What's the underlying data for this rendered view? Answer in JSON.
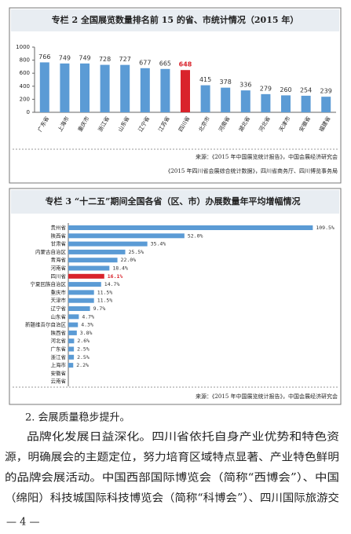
{
  "chart_data": [
    {
      "type": "bar",
      "title": "专栏 2  全国展览数量排名前 15 的省、市统计情况（2015 年）",
      "categories": [
        "广东省",
        "上海市",
        "重庆市",
        "浙江省",
        "山东省",
        "辽宁省",
        "江苏省",
        "四川省",
        "北京市",
        "河南省",
        "湖北省",
        "河北省",
        "天津市",
        "安徽省",
        "福建省"
      ],
      "values": [
        766,
        749,
        749,
        728,
        727,
        677,
        665,
        648,
        415,
        378,
        336,
        279,
        260,
        254,
        239
      ],
      "colors": [
        "#5b9bd5",
        "#5b9bd5",
        "#5b9bd5",
        "#5b9bd5",
        "#5b9bd5",
        "#5b9bd5",
        "#5b9bd5",
        "#d9232b",
        "#5b9bd5",
        "#5b9bd5",
        "#5b9bd5",
        "#5b9bd5",
        "#5b9bd5",
        "#5b9bd5",
        "#5b9bd5"
      ],
      "ylim": [
        0,
        1000
      ],
      "yticks": [
        0,
        200,
        400,
        600,
        800,
        1000
      ],
      "sources": [
        "来源：《2015 年中国展览统计报告》，中国会展经济研究会",
        "《2015 年四川省会展综合统计数据》，四川省商务厅、四川博览事务局"
      ]
    },
    {
      "type": "barh",
      "title": "专栏 3 “十二五”期间全国各省（区、市）办展数量年平均增幅情况",
      "categories": [
        "贵州省",
        "陕西省",
        "甘肃省",
        "内蒙古自治区",
        "青海省",
        "河南省",
        "四川省",
        "宁夏回族自治区",
        "重庆市",
        "天津市",
        "辽宁省",
        "山东省",
        "新疆维吾尔自治区",
        "陕西省",
        "河北省",
        "广东省",
        "浙江省",
        "上海市",
        "安徽省",
        "云南省"
      ],
      "values": [
        109.5,
        52.0,
        35.4,
        25.5,
        22.0,
        18.4,
        16.1,
        14.7,
        11.5,
        11.5,
        9.7,
        4.7,
        4.3,
        3.8,
        2.6,
        2.5,
        2.5,
        2.2,
        0,
        0
      ],
      "value_labels": [
        "109.5%",
        "52.0%",
        "35.4%",
        "25.5%",
        "22.0%",
        "18.4%",
        "16.1%",
        "14.7%",
        "11.5%",
        "11.5%",
        "9.7%",
        "4.7%",
        "4.3%",
        "3.8%",
        "2.6%",
        "2.5%",
        "2.5%",
        "2.2%",
        null,
        null
      ],
      "colors": [
        "#5b9bd5",
        "#5b9bd5",
        "#5b9bd5",
        "#5b9bd5",
        "#5b9bd5",
        "#5b9bd5",
        "#d9232b",
        "#5b9bd5",
        "#5b9bd5",
        "#5b9bd5",
        "#5b9bd5",
        "#5b9bd5",
        "#5b9bd5",
        "#5b9bd5",
        "#5b9bd5",
        "#5b9bd5",
        "#5b9bd5",
        "#5b9bd5",
        "#5b9bd5",
        "#5b9bd5"
      ],
      "xlim": [
        0,
        115
      ],
      "sources": [
        "来源：《2015 年中国展览统计报告》，中国会展经济研究会"
      ]
    }
  ],
  "body": {
    "heading": "2. 会展质量稳步提升。",
    "lines": [
      "品牌化发展日益深化。四川省依托自身产业优势和特色资",
      "源，明确展会的主题定位，努力培育区域特点显著、产业特色鲜明",
      "的品牌会展活动。中国西部国际博览会（简称“西博会”）、中国",
      "（绵阳）科技城国际科技博览会（简称“科博会”）、四川国际旅游交"
    ],
    "page_number": "— 4 —"
  }
}
